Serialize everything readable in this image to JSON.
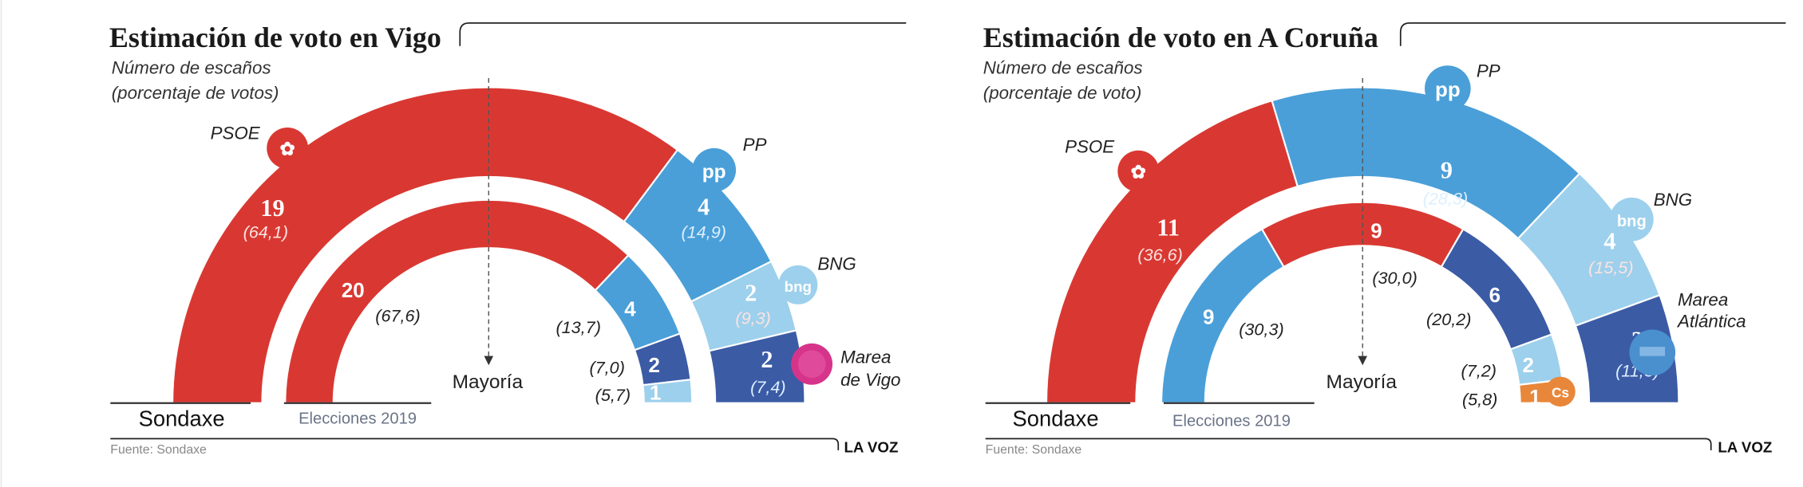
{
  "chart_data": [
    {
      "type": "pie",
      "title": "Estimación de voto en Vigo",
      "subtitle_line1": "Número de escaños",
      "subtitle_line2": "(porcentaje de votos)",
      "majority_label": "Mayoría",
      "source": "Fuente: Sondaxe",
      "brand": "LA VOZ",
      "party_labels": {
        "psoe": "PSOE",
        "pp": "PP",
        "bng": "BNG",
        "marea_1": "Marea",
        "marea_2": "de Vigo"
      },
      "rings": [
        {
          "name": "Sondaxe",
          "segments": [
            {
              "seats": "19",
              "pct": "(64,1)",
              "value": 19,
              "color": "#d93832"
            },
            {
              "seats": "4",
              "pct": "(14,9)",
              "value": 4,
              "color": "#4a9fd8"
            },
            {
              "seats": "2",
              "pct": "(9,3)",
              "value": 2,
              "color": "#9dd0ec"
            },
            {
              "seats": "2",
              "pct": "(7,4)",
              "value": 2,
              "color": "#3b5ba5"
            }
          ]
        },
        {
          "name": "Elecciones 2019",
          "segments": [
            {
              "seats": "20",
              "pct": "(67,6)",
              "value": 20,
              "color": "#d93832"
            },
            {
              "seats": "4",
              "pct": "(13,7)",
              "value": 4,
              "color": "#4a9fd8"
            },
            {
              "seats": "2",
              "pct": "(7,0)",
              "value": 2,
              "color": "#3b5ba5"
            },
            {
              "seats": "1",
              "pct": "(5,7)",
              "value": 1,
              "color": "#9dd0ec"
            }
          ]
        }
      ]
    },
    {
      "type": "pie",
      "title": "Estimación de voto en A Coruña",
      "subtitle_line1": "Número de escaños",
      "subtitle_line2": "(porcentaje de voto)",
      "majority_label": "Mayoría",
      "source": "Fuente: Sondaxe",
      "brand": "LA VOZ",
      "party_labels": {
        "psoe": "PSOE",
        "pp": "PP",
        "bng": "BNG",
        "marea_1": "Marea",
        "marea_2": "Atlántica"
      },
      "rings": [
        {
          "name": "Sondaxe",
          "segments": [
            {
              "seats": "11",
              "pct": "(36,6)",
              "value": 11,
              "color": "#d93832"
            },
            {
              "seats": "9",
              "pct": "(28,3)",
              "value": 9,
              "color": "#4a9fd8"
            },
            {
              "seats": "4",
              "pct": "(15,5)",
              "value": 4,
              "color": "#9dd0ec"
            },
            {
              "seats": "3",
              "pct": "(11,3)",
              "value": 3,
              "color": "#3b5ba5"
            }
          ]
        },
        {
          "name": "Elecciones 2019",
          "segments": [
            {
              "seats": "9",
              "pct": "(30,3)",
              "value": 9,
              "color": "#4a9fd8"
            },
            {
              "seats": "9",
              "pct": "(30,0)",
              "value": 9,
              "color": "#d93832"
            },
            {
              "seats": "6",
              "pct": "(20,2)",
              "value": 6,
              "color": "#3b5ba5"
            },
            {
              "seats": "2",
              "pct": "(7,2)",
              "value": 2,
              "color": "#9dd0ec"
            },
            {
              "seats": "1",
              "pct": "(5,8)",
              "value": 1,
              "color": "#e8873a"
            }
          ]
        }
      ]
    }
  ],
  "logos": {
    "pp": "pp",
    "bng": "bng",
    "cs": "Cs"
  }
}
